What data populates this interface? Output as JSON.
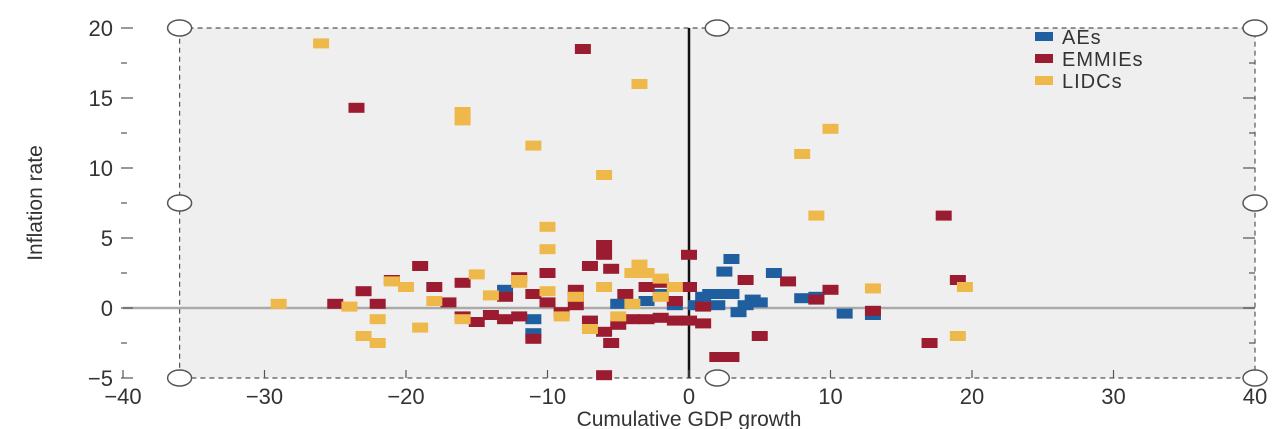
{
  "chart_data": {
    "type": "scatter",
    "xlabel": "Cumulative GDP growth",
    "ylabel": "Inflation rate",
    "xlim": [
      -40,
      40
    ],
    "ylim": [
      -5,
      20
    ],
    "x_ticks": [
      "−40",
      "−30",
      "−20",
      "−10",
      "0",
      "10",
      "20",
      "30",
      "40"
    ],
    "y_ticks": [
      "−5",
      "0",
      "5",
      "10",
      "15",
      "20"
    ],
    "grid": false,
    "legend_position": "top-right",
    "shaded_region": {
      "x": [
        -36,
        40
      ],
      "y": [
        -5,
        20
      ],
      "color": "#efefef"
    },
    "colors": {
      "AEs": "#1f5fa0",
      "EMMIEs": "#9b1b30",
      "LIDCs": "#efb84a"
    },
    "series": [
      {
        "name": "AEs",
        "points": [
          [
            2.5,
            2.6
          ],
          [
            3,
            1
          ],
          [
            4,
            0.2
          ],
          [
            4.5,
            0.6
          ],
          [
            3.5,
            -0.3
          ],
          [
            5,
            0.4
          ],
          [
            6,
            2.5
          ],
          [
            8,
            0.7
          ],
          [
            9,
            0.8
          ],
          [
            11,
            -0.4
          ],
          [
            13,
            -0.5
          ],
          [
            1,
            0.8
          ],
          [
            -1,
            0.2
          ],
          [
            -2,
            1
          ],
          [
            -3,
            0.5
          ],
          [
            -5,
            0.3
          ],
          [
            -13,
            1.3
          ],
          [
            -11,
            -0.8
          ],
          [
            -11,
            -1.8
          ],
          [
            0.5,
            0.2
          ],
          [
            1.5,
            1
          ],
          [
            2,
            0.2
          ],
          [
            3,
            3.5
          ],
          [
            2.2,
            1
          ]
        ]
      },
      {
        "name": "EMMIEs",
        "points": [
          [
            -23.5,
            14.3
          ],
          [
            -7.5,
            18.5
          ],
          [
            -25,
            0.3
          ],
          [
            -23,
            1.2
          ],
          [
            -22,
            0.3
          ],
          [
            -21,
            2
          ],
          [
            -19,
            3
          ],
          [
            -18,
            1.5
          ],
          [
            -17,
            0.4
          ],
          [
            -16,
            -0.6
          ],
          [
            -16,
            1.8
          ],
          [
            -15,
            -1
          ],
          [
            -14,
            -0.5
          ],
          [
            -13,
            0.8
          ],
          [
            -12,
            -0.6
          ],
          [
            -12,
            2.2
          ],
          [
            -11,
            1
          ],
          [
            -10,
            0.4
          ],
          [
            -10,
            2.5
          ],
          [
            -9,
            -0.3
          ],
          [
            -8,
            0.8
          ],
          [
            -8,
            1.3
          ],
          [
            -7,
            3
          ],
          [
            -7,
            -0.9
          ],
          [
            -6,
            4.5
          ],
          [
            -6,
            3.8
          ],
          [
            -6,
            -1.7
          ],
          [
            -5.5,
            2.8
          ],
          [
            -5.5,
            -2.5
          ],
          [
            -5,
            -1.2
          ],
          [
            -4.5,
            1
          ],
          [
            -4,
            -0.8
          ],
          [
            -3,
            1.5
          ],
          [
            -3,
            -0.8
          ],
          [
            -2,
            -0.7
          ],
          [
            -2,
            1.8
          ],
          [
            -1,
            0.5
          ],
          [
            -1,
            -0.9
          ],
          [
            0,
            3.8
          ],
          [
            0,
            1.5
          ],
          [
            0,
            -0.9
          ],
          [
            1,
            -1.1
          ],
          [
            1,
            0.1
          ],
          [
            -11,
            -2.2
          ],
          [
            2,
            -3.5
          ],
          [
            3,
            -3.5
          ],
          [
            5,
            -2
          ],
          [
            4,
            2
          ],
          [
            7,
            1.9
          ],
          [
            9,
            0.6
          ],
          [
            10,
            1.3
          ],
          [
            13,
            -0.2
          ],
          [
            17,
            -2.5
          ],
          [
            18,
            6.6
          ],
          [
            19,
            2
          ],
          [
            -6,
            -4.8
          ],
          [
            -13,
            -0.8
          ],
          [
            -8,
            0.2
          ]
        ]
      },
      {
        "name": "LIDCs",
        "points": [
          [
            -26,
            18.9
          ],
          [
            -3.5,
            16
          ],
          [
            -16,
            14
          ],
          [
            -16,
            13.4
          ],
          [
            -11,
            11.6
          ],
          [
            -6,
            9.5
          ],
          [
            -10,
            5.8
          ],
          [
            -10,
            4.2
          ],
          [
            -3.5,
            3.1
          ],
          [
            -4,
            2.5
          ],
          [
            -15,
            2.4
          ],
          [
            -21,
            1.9
          ],
          [
            -19,
            -1.4
          ],
          [
            -18,
            0.5
          ],
          [
            -16,
            -0.8
          ],
          [
            -14,
            0.9
          ],
          [
            -12,
            2
          ],
          [
            -10,
            1.2
          ],
          [
            -8,
            0.8
          ],
          [
            -6,
            1.5
          ],
          [
            -4,
            0.3
          ],
          [
            -2,
            0.8
          ],
          [
            -9,
            -0.6
          ],
          [
            -7,
            -1.5
          ],
          [
            -5,
            -0.6
          ],
          [
            -22,
            -0.8
          ],
          [
            -22,
            -2.5
          ],
          [
            -23,
            -2
          ],
          [
            -24,
            0.1
          ],
          [
            -29,
            0.3
          ],
          [
            -20,
            1.5
          ],
          [
            8,
            11
          ],
          [
            10,
            12.8
          ],
          [
            9,
            6.6
          ],
          [
            13,
            1.4
          ],
          [
            19,
            -2
          ],
          [
            19.5,
            1.5
          ],
          [
            -12,
            1.8
          ],
          [
            -3,
            2.5
          ],
          [
            -2,
            2.1
          ],
          [
            -1,
            1.5
          ]
        ]
      }
    ]
  }
}
